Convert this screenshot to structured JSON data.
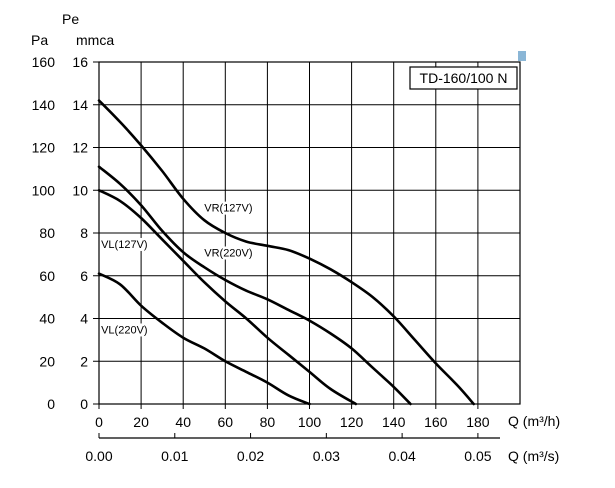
{
  "chart_data": {
    "type": "line",
    "model_label": "TD-160/100 N",
    "left_axis_title": "Pa",
    "inner_axis_title_line1": "Pe",
    "inner_axis_title_line2": "mmca",
    "x_axis_title": "Q (m³/h)",
    "x2_axis_title": "Q (m³/s)",
    "xlim": [
      0,
      200
    ],
    "ylim": [
      0,
      16
    ],
    "x_ticks": [
      "0",
      "20",
      "40",
      "60",
      "80",
      "100",
      "120",
      "140",
      "160",
      "180"
    ],
    "x_tick_values": [
      0,
      20,
      40,
      60,
      80,
      100,
      120,
      140,
      160,
      180
    ],
    "x2_ticks": [
      "0.00",
      "0.01",
      "0.02",
      "0.03",
      "0.04",
      "0.05"
    ],
    "x2_tick_values": [
      0,
      0.01,
      0.02,
      0.03,
      0.04,
      0.05
    ],
    "y_ticks": [
      "0",
      "2",
      "4",
      "6",
      "8",
      "10",
      "12",
      "14",
      "16"
    ],
    "y_tick_values": [
      0,
      2,
      4,
      6,
      8,
      10,
      12,
      14,
      16
    ],
    "y2_ticks": [
      "0",
      "20",
      "40",
      "60",
      "80",
      "100",
      "120",
      "140",
      "160"
    ],
    "grid": true,
    "series": [
      {
        "name": "VR(127V)",
        "x": [
          0,
          10,
          20,
          30,
          40,
          50,
          60,
          70,
          80,
          90,
          100,
          110,
          120,
          130,
          140,
          150,
          160,
          170,
          178
        ],
        "y": [
          14.2,
          13.2,
          12.1,
          10.9,
          9.6,
          8.6,
          8.0,
          7.6,
          7.4,
          7.2,
          6.8,
          6.3,
          5.7,
          5.0,
          4.1,
          3.0,
          1.9,
          0.9,
          0
        ]
      },
      {
        "name": "VR(220V)",
        "x": [
          0,
          10,
          20,
          30,
          40,
          50,
          60,
          70,
          80,
          90,
          100,
          110,
          120,
          130,
          140,
          148
        ],
        "y": [
          11.1,
          10.3,
          9.3,
          8.1,
          7.1,
          6.4,
          5.8,
          5.3,
          4.9,
          4.4,
          3.9,
          3.3,
          2.6,
          1.7,
          0.8,
          0
        ]
      },
      {
        "name": "VL(127V)",
        "x": [
          0,
          10,
          20,
          30,
          40,
          50,
          60,
          70,
          80,
          90,
          100,
          110,
          122
        ],
        "y": [
          10.0,
          9.5,
          8.7,
          7.7,
          6.7,
          5.7,
          4.8,
          4.0,
          3.1,
          2.3,
          1.5,
          0.7,
          0
        ]
      },
      {
        "name": "VL(220V)",
        "x": [
          0,
          10,
          20,
          30,
          40,
          50,
          60,
          70,
          80,
          90,
          100
        ],
        "y": [
          6.1,
          5.6,
          4.6,
          3.8,
          3.1,
          2.6,
          2.0,
          1.5,
          1.0,
          0.4,
          0
        ]
      }
    ]
  }
}
